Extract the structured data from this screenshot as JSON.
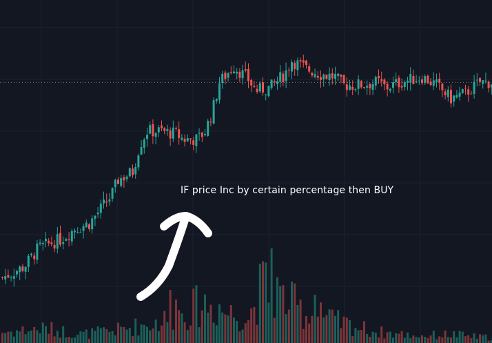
{
  "chart_data": {
    "type": "candlestick",
    "grid": true,
    "y_range": [
      0,
      100
    ],
    "volume_range": [
      0,
      100
    ],
    "price_line": 76,
    "annotation": "IF price Inc by certain percentage then BUY",
    "colors": {
      "background": "#131722",
      "up": "#26a69a",
      "down": "#ef5350",
      "up_volume": "#1d5f59",
      "down_volume": "#7c3539",
      "grid": "#1e2230",
      "arrow": "#ffffff",
      "price_line": "#7e8290"
    },
    "close_anchors": [
      [
        0,
        4
      ],
      [
        3,
        8
      ],
      [
        5,
        15
      ],
      [
        8,
        18
      ],
      [
        10,
        22
      ],
      [
        12,
        24
      ],
      [
        15,
        34
      ],
      [
        16,
        40
      ],
      [
        18,
        43
      ],
      [
        19,
        53
      ],
      [
        20,
        58
      ],
      [
        22,
        58
      ],
      [
        24,
        57
      ],
      [
        25,
        55
      ],
      [
        27,
        55
      ],
      [
        28,
        58
      ],
      [
        29,
        65
      ],
      [
        30,
        76
      ],
      [
        32,
        82
      ],
      [
        34,
        77
      ],
      [
        35,
        73
      ],
      [
        37,
        74
      ],
      [
        39,
        79
      ],
      [
        40,
        84
      ],
      [
        42,
        81
      ],
      [
        44,
        79
      ],
      [
        46,
        78
      ],
      [
        47,
        75
      ],
      [
        49,
        75
      ],
      [
        52,
        76
      ],
      [
        53,
        74
      ],
      [
        55,
        76
      ],
      [
        58,
        78
      ],
      [
        60,
        75
      ],
      [
        62,
        70
      ],
      [
        64,
        72
      ],
      [
        66,
        76
      ]
    ],
    "volume_anchors": [
      [
        0,
        15
      ],
      [
        6,
        20
      ],
      [
        11,
        12
      ],
      [
        16,
        18
      ],
      [
        22,
        30
      ],
      [
        28,
        55
      ],
      [
        30,
        45
      ],
      [
        34,
        35
      ],
      [
        36,
        80
      ],
      [
        38,
        65
      ],
      [
        40,
        55
      ],
      [
        42,
        40
      ],
      [
        44,
        35
      ],
      [
        46,
        30
      ],
      [
        49,
        22
      ],
      [
        52,
        15
      ],
      [
        55,
        12
      ],
      [
        58,
        10
      ],
      [
        62,
        12
      ],
      [
        66,
        8
      ]
    ],
    "volume_spikes": [
      [
        23,
        55
      ],
      [
        37,
        98
      ],
      [
        43,
        50
      ],
      [
        24,
        45
      ],
      [
        30,
        40
      ],
      [
        44,
        42
      ],
      [
        38,
        68
      ]
    ]
  }
}
